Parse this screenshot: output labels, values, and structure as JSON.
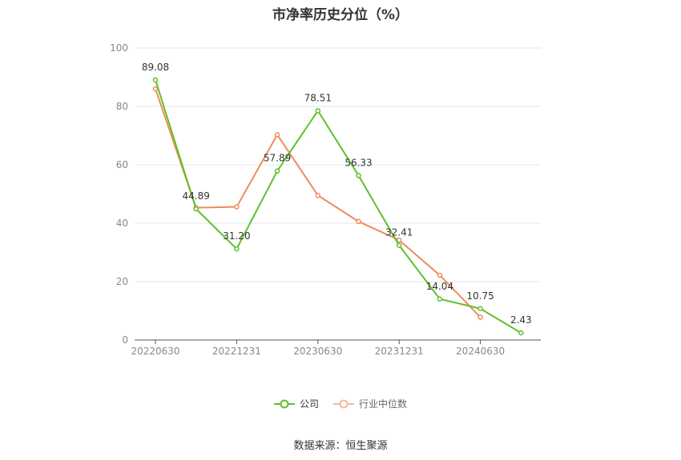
{
  "chart_data": {
    "type": "line",
    "title": "市净率历史分位（%）",
    "x": [
      "20220630",
      "20220930",
      "20221231",
      "20230331",
      "20230630",
      "20230930",
      "20231231",
      "20240331",
      "20240630",
      "20240930"
    ],
    "x_tick_labels": [
      "20220630",
      "20221231",
      "20230630",
      "20231231",
      "20240630"
    ],
    "y_ticks": [
      0,
      20,
      40,
      60,
      80,
      100
    ],
    "ylim": [
      0,
      100
    ],
    "grid": true,
    "legend_position": "bottom",
    "series": [
      {
        "name": "公司",
        "color": "#5ec12a",
        "values": [
          89.08,
          44.89,
          31.2,
          57.89,
          78.51,
          56.33,
          32.41,
          14.04,
          10.75,
          2.43
        ],
        "labels": [
          "89.08",
          "44.89",
          "31.20",
          "57.89",
          "78.51",
          "56.33",
          "32.41",
          "14.04",
          "10.75",
          "2.43"
        ]
      },
      {
        "name": "行业中位数",
        "color": "#f08c5a",
        "values": [
          86,
          45.3,
          45.6,
          70.3,
          49.5,
          40.6,
          34.2,
          22.2,
          7.8,
          null
        ]
      }
    ]
  },
  "source_text": "数据来源：恒生聚源"
}
